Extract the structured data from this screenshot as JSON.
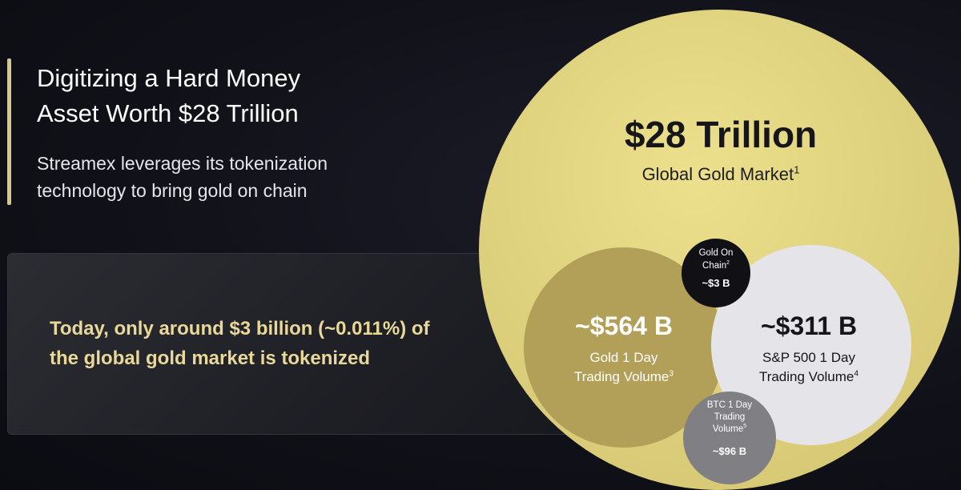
{
  "header": {
    "title_lines": [
      "Digitizing a Hard Money",
      "Asset Worth $28 Trillion"
    ],
    "subtitle_lines": [
      "Streamex leverages its tokenization",
      "technology to bring gold on chain"
    ]
  },
  "callout": {
    "lines": [
      "Today, only around $3 billion (~0.011%) of",
      "the global gold market is tokenized"
    ]
  },
  "bubbles": {
    "global_gold": {
      "value": "$28 Trillion",
      "caption": "Global Gold Market",
      "footnote": "1"
    },
    "gold_day_volume": {
      "value": "~$564 B",
      "caption_lines": [
        "Gold 1 Day",
        "Trading Volume"
      ],
      "footnote": "3"
    },
    "sp500_day_volume": {
      "value": "~$311 B",
      "caption_lines": [
        "S&P 500 1 Day",
        "Trading Volume"
      ],
      "footnote": "4"
    },
    "gold_on_chain": {
      "value": "~$3 B",
      "caption_lines": [
        "Gold On",
        "Chain"
      ],
      "footnote": "2"
    },
    "btc_day_volume": {
      "value": "~$96 B",
      "caption_lines": [
        "BTC 1 Day",
        "Trading",
        "Volume"
      ],
      "footnote": "5"
    }
  },
  "colors": {
    "background": "#111119",
    "accent": "#d8c886",
    "callout_text": "#e8d899",
    "big_circle": "#ddd07c",
    "gold_circle": "#b3a058",
    "sp500_circle": "#e5e5e9",
    "chain_circle": "#101015",
    "btc_circle": "#808084"
  }
}
